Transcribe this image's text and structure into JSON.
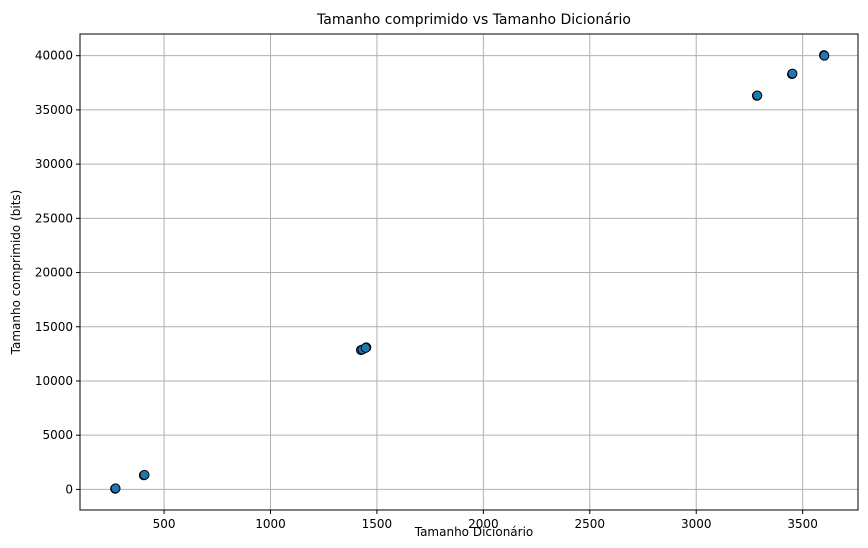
{
  "chart_data": {
    "type": "scatter",
    "title": "Tamanho comprimido vs Tamanho Dicionário",
    "xlabel": "Tamanho Dicionário",
    "ylabel": "Tamanho comprimido (bits)",
    "xlim": [
      105,
      3760
    ],
    "ylim": [
      -1900,
      42000
    ],
    "xticks": [
      500,
      1000,
      1500,
      2000,
      2500,
      3000,
      3500
    ],
    "yticks": [
      0,
      5000,
      10000,
      15000,
      20000,
      25000,
      30000,
      35000,
      40000
    ],
    "grid": true,
    "point_color": "#1f77b4",
    "point_edge_color": "#000000",
    "points": [
      {
        "x": 270,
        "y": 60
      },
      {
        "x": 272,
        "y": 90
      },
      {
        "x": 405,
        "y": 1300
      },
      {
        "x": 408,
        "y": 1340
      },
      {
        "x": 1425,
        "y": 12850
      },
      {
        "x": 1432,
        "y": 12900
      },
      {
        "x": 1450,
        "y": 13100
      },
      {
        "x": 1447,
        "y": 13050
      },
      {
        "x": 3285,
        "y": 36300
      },
      {
        "x": 3287,
        "y": 36330
      },
      {
        "x": 3450,
        "y": 38300
      },
      {
        "x": 3452,
        "y": 38350
      },
      {
        "x": 3600,
        "y": 40050
      },
      {
        "x": 3602,
        "y": 40000
      }
    ]
  }
}
